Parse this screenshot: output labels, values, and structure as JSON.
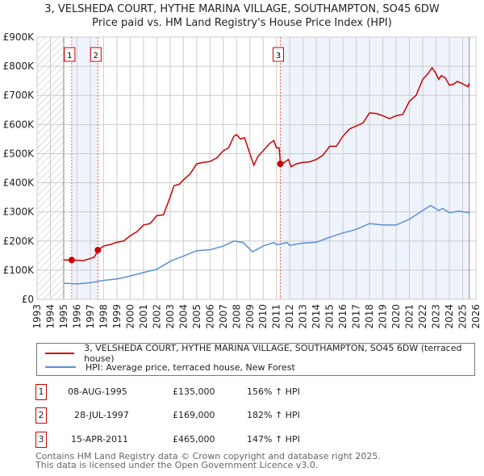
{
  "title_line1": "3, VELSHEDA COURT, HYTHE MARINA VILLAGE, SOUTHAMPTON, SO45 6DW",
  "title_line2": "Price paid vs. HM Land Registry's House Price Index (HPI)",
  "chart_data": {
    "type": "line",
    "xlim": [
      1993,
      2026
    ],
    "ylim": [
      0,
      900000
    ],
    "yticks": [
      {
        "v": 0,
        "label": "£0"
      },
      {
        "v": 100000,
        "label": "£100K"
      },
      {
        "v": 200000,
        "label": "£200K"
      },
      {
        "v": 300000,
        "label": "£300K"
      },
      {
        "v": 400000,
        "label": "£400K"
      },
      {
        "v": 500000,
        "label": "£500K"
      },
      {
        "v": 600000,
        "label": "£600K"
      },
      {
        "v": 700000,
        "label": "£700K"
      },
      {
        "v": 800000,
        "label": "£800K"
      },
      {
        "v": 900000,
        "label": "£900K"
      }
    ],
    "xticks": [
      "1993",
      "1994",
      "1995",
      "1996",
      "1997",
      "1998",
      "1999",
      "2000",
      "2001",
      "2002",
      "2003",
      "2004",
      "2005",
      "2006",
      "2007",
      "2008",
      "2009",
      "2010",
      "2011",
      "2012",
      "2013",
      "2014",
      "2015",
      "2016",
      "2017",
      "2018",
      "2019",
      "2020",
      "2021",
      "2022",
      "2023",
      "2024",
      "2025",
      "2026"
    ],
    "data_start": 1995.0,
    "data_end": 2025.5,
    "series": [
      {
        "name": "3, VELSHEDA COURT, HYTHE MARINA VILLAGE, SOUTHAMPTON, SO45 6DW (terraced house)",
        "color": "#cc0000",
        "points": [
          [
            1995.0,
            135
          ],
          [
            1995.6,
            135
          ],
          [
            1996.5,
            133
          ],
          [
            1997,
            140
          ],
          [
            1997.3,
            145
          ],
          [
            1997.6,
            169
          ],
          [
            1998,
            183
          ],
          [
            1998.5,
            188
          ],
          [
            1999,
            196
          ],
          [
            1999.5,
            200
          ],
          [
            2000,
            218
          ],
          [
            2000.5,
            232
          ],
          [
            2001,
            255
          ],
          [
            2001.5,
            260
          ],
          [
            2002,
            287
          ],
          [
            2002.5,
            290
          ],
          [
            2003,
            350
          ],
          [
            2003.3,
            390
          ],
          [
            2003.7,
            395
          ],
          [
            2004,
            410
          ],
          [
            2004.5,
            430
          ],
          [
            2005,
            465
          ],
          [
            2005.5,
            470
          ],
          [
            2006,
            473
          ],
          [
            2006.5,
            485
          ],
          [
            2007,
            510
          ],
          [
            2007.4,
            520
          ],
          [
            2007.8,
            560
          ],
          [
            2008,
            565
          ],
          [
            2008.3,
            550
          ],
          [
            2008.6,
            555
          ],
          [
            2009,
            500
          ],
          [
            2009.3,
            460
          ],
          [
            2009.6,
            490
          ],
          [
            2010,
            510
          ],
          [
            2010.5,
            535
          ],
          [
            2010.8,
            545
          ],
          [
            2011.0,
            520
          ],
          [
            2011.2,
            520
          ],
          [
            2011.3,
            465
          ],
          [
            2011.6,
            470
          ],
          [
            2011.9,
            480
          ],
          [
            2012.1,
            455
          ],
          [
            2012.5,
            465
          ],
          [
            2013,
            470
          ],
          [
            2013.5,
            472
          ],
          [
            2014,
            480
          ],
          [
            2014.5,
            495
          ],
          [
            2015,
            525
          ],
          [
            2015.5,
            525
          ],
          [
            2016,
            560
          ],
          [
            2016.5,
            585
          ],
          [
            2017,
            595
          ],
          [
            2017.5,
            605
          ],
          [
            2018,
            640
          ],
          [
            2018.5,
            638
          ],
          [
            2019,
            630
          ],
          [
            2019.5,
            620
          ],
          [
            2020,
            630
          ],
          [
            2020.5,
            635
          ],
          [
            2021,
            680
          ],
          [
            2021.5,
            700
          ],
          [
            2022,
            755
          ],
          [
            2022.4,
            775
          ],
          [
            2022.7,
            795
          ],
          [
            2023,
            775
          ],
          [
            2023.2,
            755
          ],
          [
            2023.4,
            768
          ],
          [
            2023.7,
            760
          ],
          [
            2024,
            735
          ],
          [
            2024.3,
            738
          ],
          [
            2024.6,
            748
          ],
          [
            2025,
            740
          ],
          [
            2025.4,
            730
          ],
          [
            2025.5,
            742
          ]
        ]
      },
      {
        "name": "HPI: Average price, terraced house, New Forest",
        "color": "#5b8fd6",
        "points": [
          [
            1995,
            55
          ],
          [
            1996,
            53
          ],
          [
            1997,
            57
          ],
          [
            1998,
            65
          ],
          [
            1999,
            70
          ],
          [
            2000,
            80
          ],
          [
            2001,
            92
          ],
          [
            2002,
            103
          ],
          [
            2003,
            130
          ],
          [
            2003.5,
            140
          ],
          [
            2004,
            148
          ],
          [
            2005,
            167
          ],
          [
            2006,
            170
          ],
          [
            2007,
            183
          ],
          [
            2007.8,
            200
          ],
          [
            2008.5,
            195
          ],
          [
            2009.2,
            163
          ],
          [
            2010,
            183
          ],
          [
            2010.8,
            195
          ],
          [
            2011,
            187
          ],
          [
            2011.8,
            195
          ],
          [
            2012,
            185
          ],
          [
            2013,
            193
          ],
          [
            2014,
            196
          ],
          [
            2015,
            213
          ],
          [
            2016,
            228
          ],
          [
            2017,
            240
          ],
          [
            2018,
            260
          ],
          [
            2019,
            255
          ],
          [
            2020,
            255
          ],
          [
            2021,
            275
          ],
          [
            2022,
            305
          ],
          [
            2022.6,
            322
          ],
          [
            2023.2,
            305
          ],
          [
            2023.5,
            312
          ],
          [
            2024,
            297
          ],
          [
            2024.7,
            303
          ],
          [
            2025.5,
            297
          ]
        ]
      }
    ],
    "sales": [
      {
        "id": "1",
        "x": 1995.6,
        "y": 135
      },
      {
        "id": "2",
        "x": 1997.57,
        "y": 169
      },
      {
        "id": "3",
        "x": 2011.29,
        "y": 465
      }
    ]
  },
  "table": [
    {
      "num": "1",
      "date": "08-AUG-1995",
      "price": "£135,000",
      "hpi": "156% ↑ HPI"
    },
    {
      "num": "2",
      "date": "28-JUL-1997",
      "price": "£169,000",
      "hpi": "182% ↑ HPI"
    },
    {
      "num": "3",
      "date": "15-APR-2011",
      "price": "£465,000",
      "hpi": "147% ↑ HPI"
    }
  ],
  "footer_line1": "Contains HM Land Registry data © Crown copyright and database right 2025.",
  "footer_line2": "This data is licensed under the Open Government Licence v3.0."
}
